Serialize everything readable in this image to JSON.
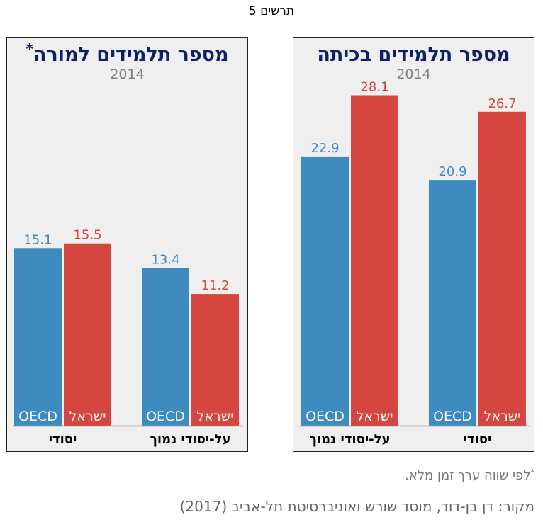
{
  "figure_title": "תרשים 5",
  "footnote_mark": "*",
  "footnote_text": "לפי שווה ערך זמן מלא.",
  "source_text": "מקור:  דן בן-דוד, מוסד שורש ואוניברסיטת תל-אביב (2017)",
  "colors": {
    "oecd": "#3e8bc0",
    "israel": "#d4463f",
    "title": "#0d1f66",
    "background": "#efefef"
  },
  "chart_data": [
    {
      "type": "bar",
      "title": "מספר תלמידים בכיתה",
      "title_mark": "",
      "subtitle": "2014",
      "categories": [
        "יסודי",
        "על-יסודי נמוך"
      ],
      "series": [
        {
          "name": "OECD",
          "values": [
            20.9,
            22.9
          ]
        },
        {
          "name": "ישראל",
          "values": [
            26.7,
            28.1
          ]
        }
      ],
      "ylim": [
        0,
        30
      ],
      "grid": false,
      "legend": "inside bars, bottom"
    },
    {
      "type": "bar",
      "title": "מספר תלמידים למורה",
      "title_mark": "*",
      "subtitle": "2014",
      "categories": [
        "יסודי",
        "על-יסודי נמוך"
      ],
      "series": [
        {
          "name": "OECD",
          "values": [
            15.1,
            13.4
          ]
        },
        {
          "name": "ישראל",
          "values": [
            15.5,
            11.2
          ]
        }
      ],
      "ylim": [
        0,
        30
      ],
      "grid": false,
      "legend": "inside bars, bottom"
    }
  ]
}
